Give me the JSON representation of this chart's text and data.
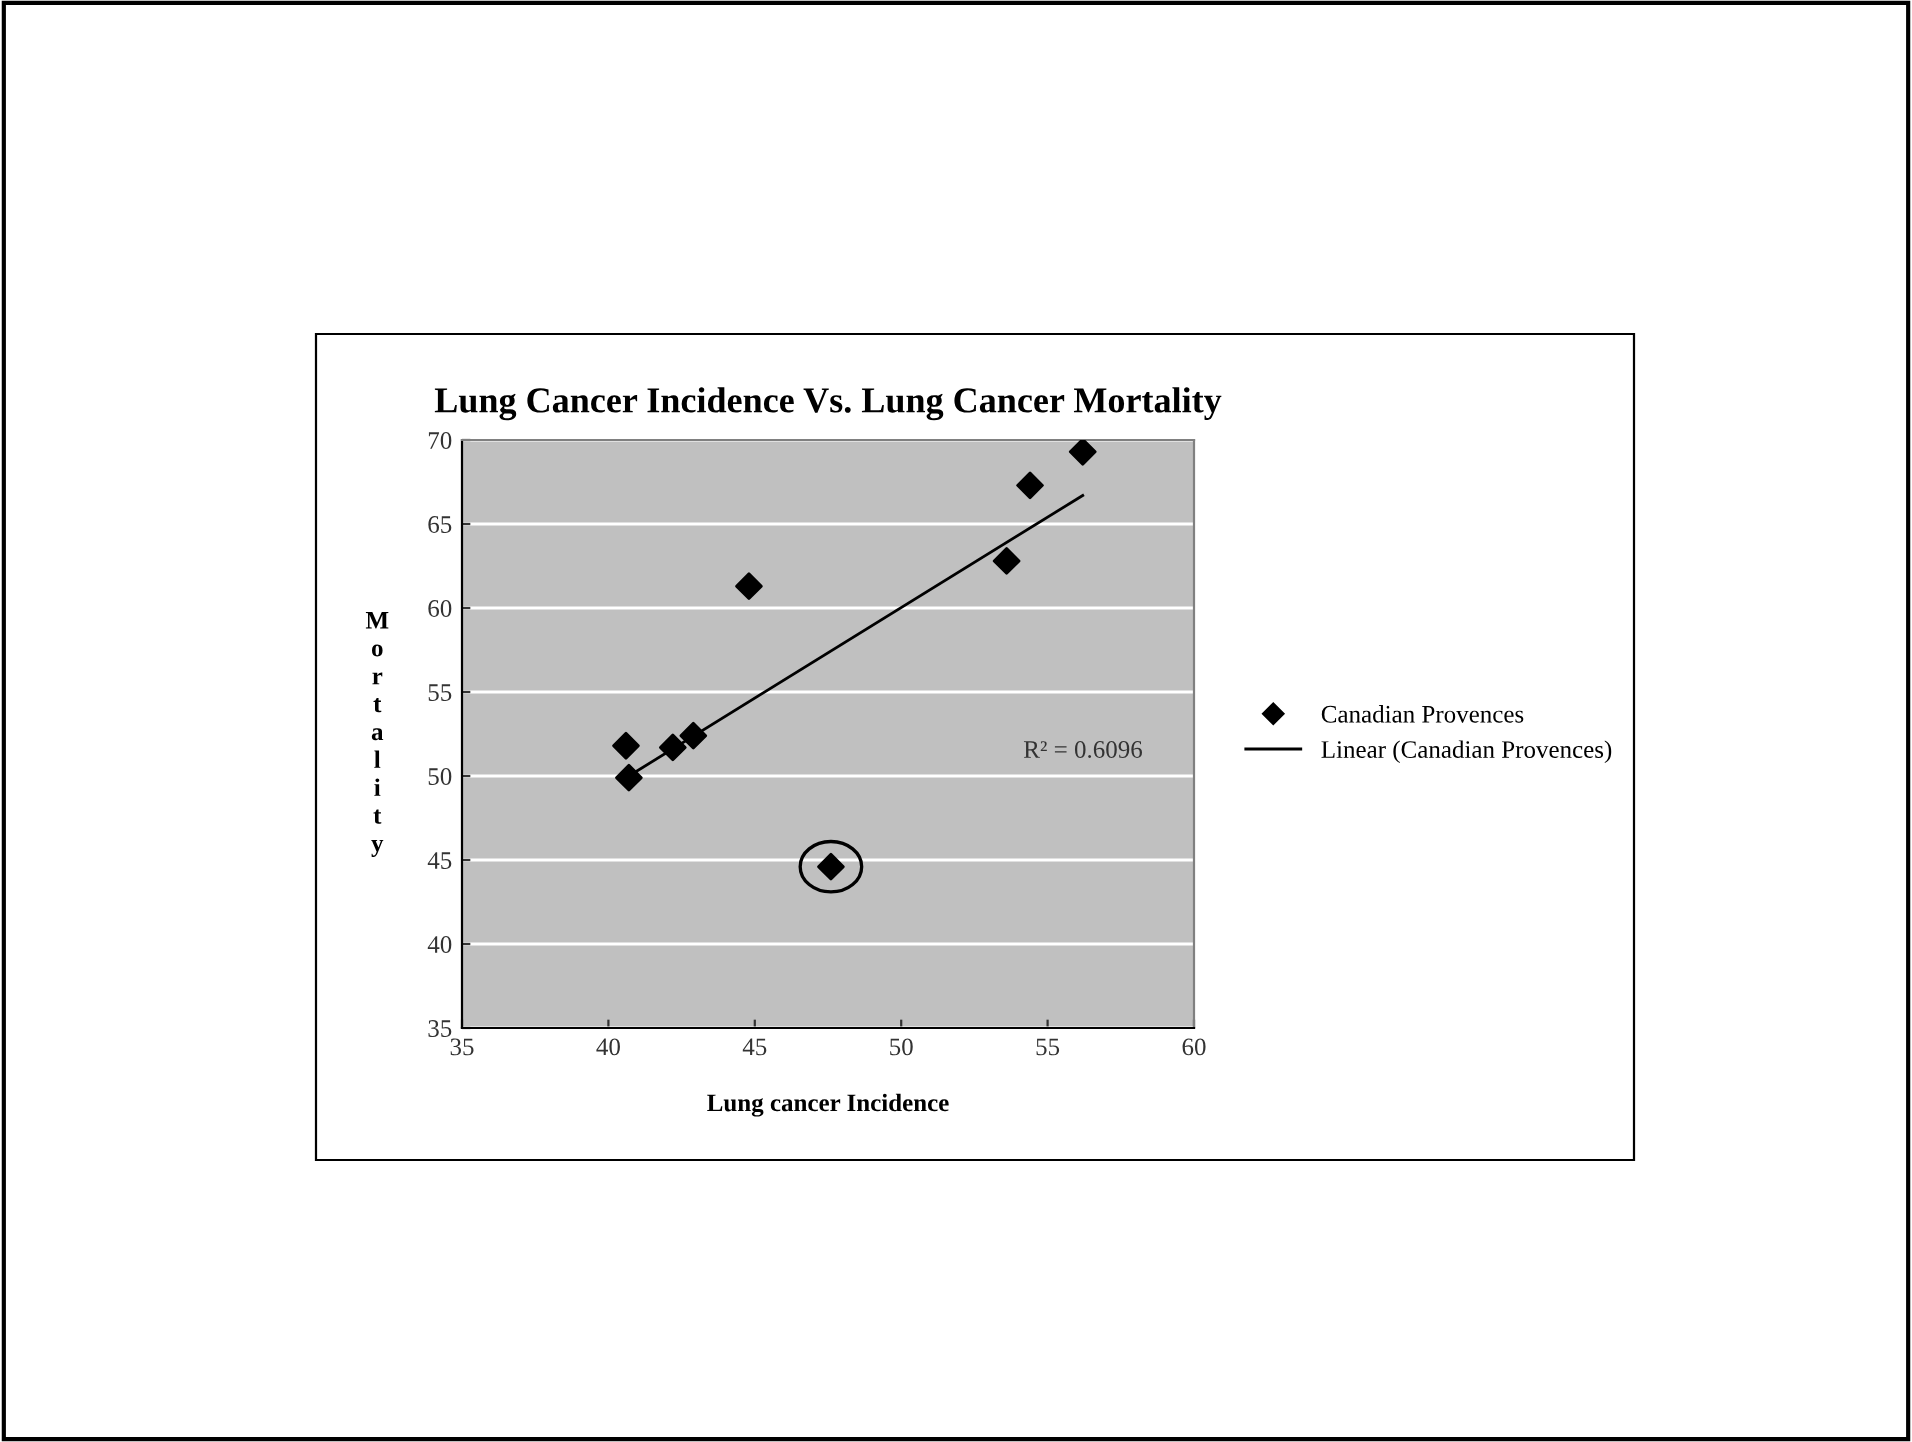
{
  "chart_data": {
    "type": "scatter",
    "title": "Lung Cancer Incidence Vs. Lung Cancer Mortality",
    "xlabel": "Lung cancer Incidence",
    "ylabel": "Mortality",
    "series": [
      {
        "name": "Canadian Provences",
        "color": "#000000",
        "marker": "diamond",
        "x": [
          40.6,
          40.7,
          42.2,
          42.9,
          44.8,
          47.6,
          53.6,
          54.4,
          56.2
        ],
        "values": [
          51.8,
          49.9,
          51.7,
          52.4,
          61.3,
          44.6,
          62.8,
          67.3,
          69.3
        ]
      },
      {
        "name": "Linear (Canadian Provences)",
        "type": "line",
        "color": "#000000",
        "line_style": "solid",
        "x": [
          40.7,
          56.2
        ],
        "values": [
          50.0,
          66.7
        ]
      }
    ],
    "annotations": [
      "R² = 0.6096"
    ],
    "xlim": [
      35,
      60
    ],
    "xticks": [
      35,
      40,
      45,
      50,
      55,
      60
    ],
    "ylim": [
      35,
      70
    ],
    "yticks": [
      35,
      40,
      45,
      50,
      55,
      60,
      65,
      70
    ],
    "grid": "y",
    "legend": "right"
  }
}
